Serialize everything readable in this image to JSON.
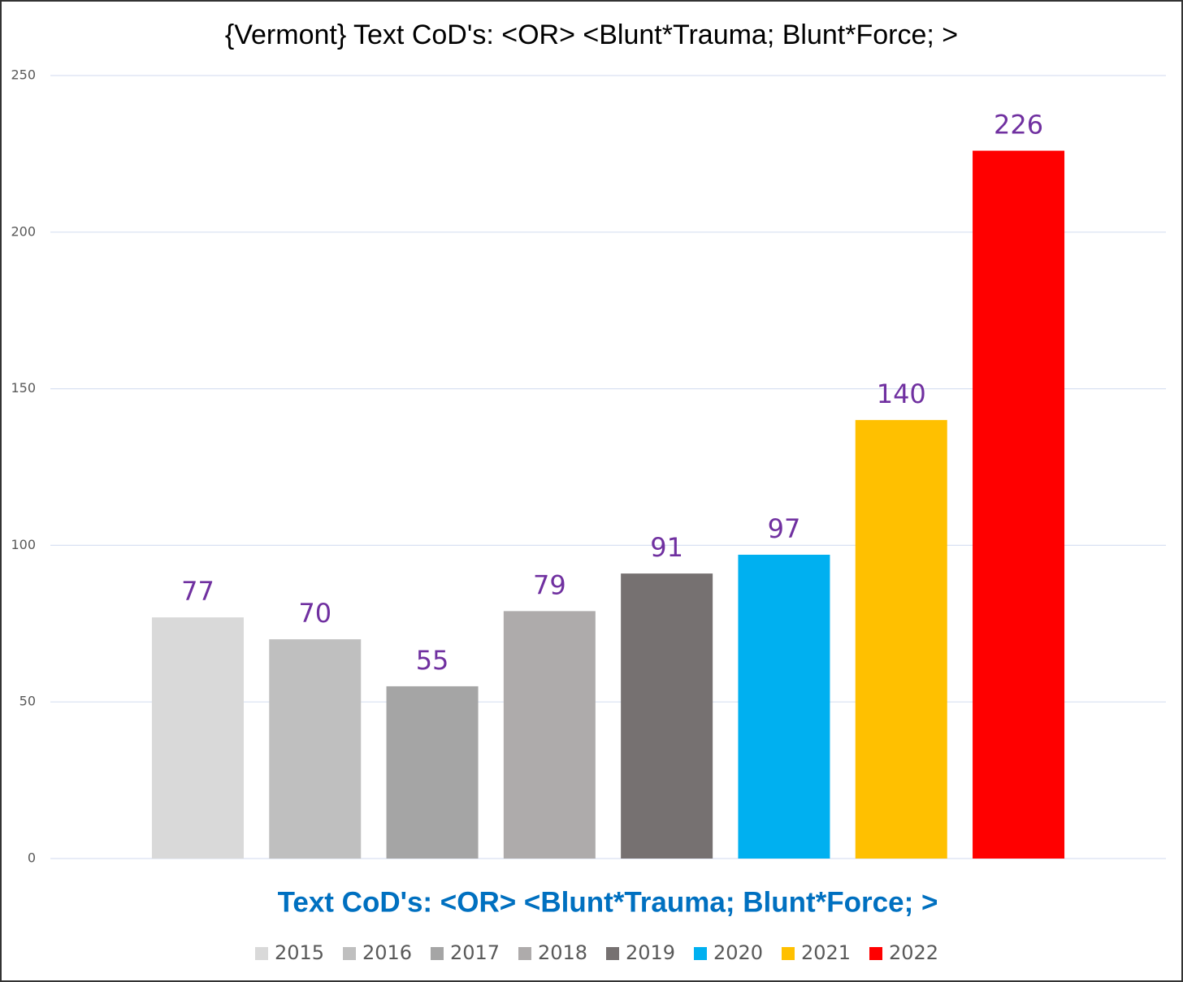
{
  "chart_data": {
    "type": "bar",
    "title": "{Vermont}  Text CoD's: <OR> <Blunt*Trauma; Blunt*Force; >",
    "x_label": "Text CoD's: <OR> <Blunt*Trauma; Blunt*Force; >",
    "categories": [
      null
    ],
    "series": [
      {
        "name": "2015",
        "color": "#d9d9d9",
        "values": [
          77
        ]
      },
      {
        "name": "2016",
        "color": "#bfbfbf",
        "values": [
          70
        ]
      },
      {
        "name": "2017",
        "color": "#a5a5a5",
        "values": [
          55
        ]
      },
      {
        "name": "2018",
        "color": "#aeabab",
        "values": [
          79
        ]
      },
      {
        "name": "2019",
        "color": "#767171",
        "values": [
          91
        ]
      },
      {
        "name": "2020",
        "color": "#00b0f0",
        "values": [
          97
        ]
      },
      {
        "name": "2021",
        "color": "#ffc000",
        "values": [
          140
        ]
      },
      {
        "name": "2022",
        "color": "#ff0000",
        "values": [
          226
        ]
      }
    ],
    "ylim": [
      0,
      250
    ],
    "yticks": [
      0,
      50,
      100,
      150,
      200,
      250
    ],
    "grid": true,
    "legend": "bottom",
    "value_label_color": "#7030a0"
  }
}
